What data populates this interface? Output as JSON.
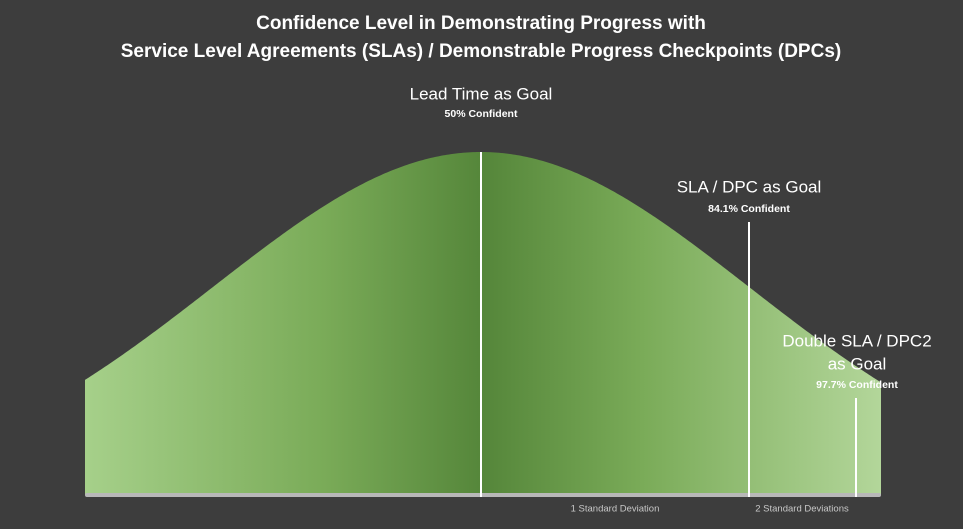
{
  "header": {
    "title_lines": [
      "Confidence Level in Demonstrating Progress with",
      "Service Level Agreements (SLAs) / Demonstrable Progress Checkpoints (DPCs)"
    ]
  },
  "markers": [
    {
      "label_lines": [
        "Lead Time as Goal"
      ],
      "confidence": "50% Confident"
    },
    {
      "label_lines": [
        "SLA / DPC as Goal"
      ],
      "confidence": "84.1% Confident"
    },
    {
      "label_lines": [
        "Double SLA / DPC2",
        "as Goal"
      ],
      "confidence": "97.7% Confident"
    }
  ],
  "axis_labels": [
    "1 Standard Deviation",
    "2 Standard Deviations"
  ]
}
